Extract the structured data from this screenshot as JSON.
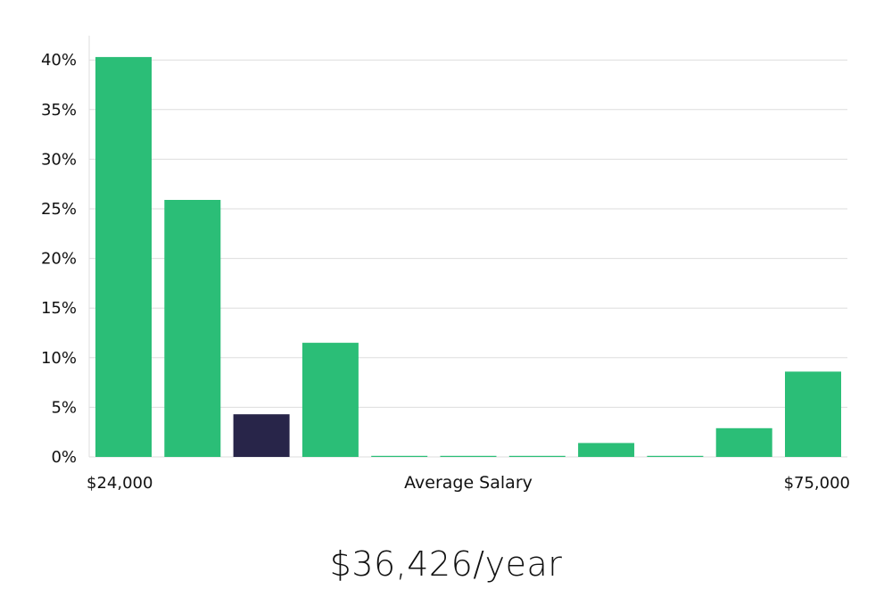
{
  "chart_data": {
    "type": "bar",
    "x_range_labels": [
      "$24,000",
      "$75,000"
    ],
    "xlabel": "Average Salary",
    "ylabel": "",
    "ylim": [
      0,
      42
    ],
    "yticks": [
      0,
      5,
      10,
      15,
      20,
      25,
      30,
      35,
      40
    ],
    "ytick_format": "%",
    "grid": true,
    "values": [
      40.3,
      25.9,
      4.3,
      11.5,
      0.1,
      0.1,
      0.1,
      1.4,
      0.1,
      2.9,
      8.6
    ],
    "highlight_index": 2,
    "colors": {
      "bar": "#2BBE77",
      "highlight": "#282549",
      "grid": "#dddddd"
    }
  },
  "salary": {
    "value": "$36,426/year"
  }
}
